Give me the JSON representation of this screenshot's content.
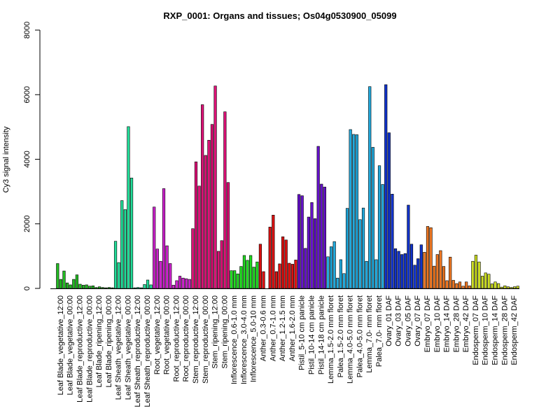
{
  "chart_data": {
    "type": "bar",
    "title": "RXP_0001: Organs and tissues; Os04g0530900_05099",
    "xlabel": "",
    "ylabel": "Cy3 signal intensity",
    "ylim": [
      0,
      8000
    ],
    "yticks": [
      0,
      2000,
      4000,
      6000,
      8000
    ],
    "grid": false,
    "groups": [
      {
        "label": "Leaf Blade_vegetative_12:00",
        "color": "#22bb22",
        "values": [
          770,
          280,
          540
        ]
      },
      {
        "label": "Leaf Blade_vegetative_00:00",
        "color": "#22bb22",
        "values": [
          170,
          110,
          280
        ]
      },
      {
        "label": "Leaf Blade_reproductive_12:00",
        "color": "#22bb22",
        "values": [
          420,
          130,
          100
        ]
      },
      {
        "label": "Leaf Blade_reproductive_00:00",
        "color": "#22bb22",
        "values": [
          110,
          70,
          80
        ]
      },
      {
        "label": "Leaf Blade_ripening_12:00",
        "color": "#22bb22",
        "values": [
          30,
          50,
          30
        ]
      },
      {
        "label": "Leaf Blade_ripening_00:00",
        "color": "#22bb22",
        "values": [
          20,
          30,
          20
        ]
      },
      {
        "label": "Leaf Sheath_vegetative_12:00",
        "color": "#22dd99",
        "values": [
          1460,
          800,
          2720
        ]
      },
      {
        "label": "Leaf Sheath_vegetative_00:00",
        "color": "#22dd99",
        "values": [
          2440,
          5010,
          3420
        ]
      },
      {
        "label": "Leaf Sheath_reproductive_12:00",
        "color": "#22dd99",
        "values": [
          20,
          30,
          20
        ]
      },
      {
        "label": "Leaf Sheath_reproductive_00:00",
        "color": "#22dd99",
        "values": [
          120,
          260,
          110
        ]
      },
      {
        "label": "Root_vegetative_12:00",
        "color": "#cc22cc",
        "values": [
          2520,
          1220,
          840
        ]
      },
      {
        "label": "Root_vegetative_00:00",
        "color": "#cc22cc",
        "values": [
          3090,
          1320,
          770
        ]
      },
      {
        "label": "Root_reproductive_12:00",
        "color": "#cc22cc",
        "values": [
          100,
          240,
          380
        ]
      },
      {
        "label": "Root_reproductive_00:00",
        "color": "#cc22cc",
        "values": [
          320,
          300,
          280
        ]
      },
      {
        "label": "Stem_reproductive_12:00",
        "color": "#dd1177",
        "values": [
          1850,
          3920,
          3170
        ]
      },
      {
        "label": "Stem_reproductive_00:00",
        "color": "#dd1177",
        "values": [
          5690,
          4120,
          4590
        ]
      },
      {
        "label": "Stem_ripening_12:00",
        "color": "#dd1177",
        "values": [
          5080,
          6270,
          1150
        ]
      },
      {
        "label": "Stem_ripening_00:00",
        "color": "#dd1177",
        "values": [
          1480,
          5470,
          3280
        ]
      },
      {
        "label": "Inflorescence_0.6-1.0 mm",
        "color": "#22dd22",
        "values": [
          550,
          550,
          450
        ]
      },
      {
        "label": "Inflorescence_3.0-4.0 mm",
        "color": "#22dd22",
        "values": [
          680,
          1020,
          870
        ]
      },
      {
        "label": "Inflorescence_5.0-10 mm",
        "color": "#22dd22",
        "values": [
          1020,
          660,
          820
        ]
      },
      {
        "label": "Anther_0.3-0.6 mm",
        "color": "#dd1111",
        "values": [
          1370,
          520,
          0
        ]
      },
      {
        "label": "Anther_0.7-1.0 mm",
        "color": "#dd1111",
        "values": [
          1900,
          2270,
          520
        ]
      },
      {
        "label": "Anther_1.2-1.5 mm",
        "color": "#dd1111",
        "values": [
          760,
          1600,
          1500
        ]
      },
      {
        "label": "Anther_1.6-2.0 mm",
        "color": "#dd1111",
        "values": [
          780,
          750,
          880
        ]
      },
      {
        "label": "Pistil_5-10 cm panicle",
        "color": "#6611cc",
        "values": [
          2910,
          2870,
          1240
        ]
      },
      {
        "label": "Pistil_10-14 cm panicle",
        "color": "#6611cc",
        "values": [
          2210,
          2660,
          2160
        ]
      },
      {
        "label": "Pistil_14-18 cm panicle",
        "color": "#6611cc",
        "values": [
          4400,
          3230,
          3140
        ]
      },
      {
        "label": "Lemma_1.5-2.0 mm floret",
        "color": "#22aadd",
        "values": [
          980,
          1290,
          1450
        ]
      },
      {
        "label": "Palea_1.5-2.0 mm floret",
        "color": "#22aadd",
        "values": [
          320,
          890,
          460
        ]
      },
      {
        "label": "Lemma_4.0-5.0 mm floret",
        "color": "#22aadd",
        "values": [
          2480,
          4920,
          4770
        ]
      },
      {
        "label": "Palea_4.0-5.0 mm floret",
        "color": "#22aadd",
        "values": [
          4760,
          2130,
          2490
        ]
      },
      {
        "label": "Lemma_7.0- mm floret",
        "color": "#22aadd",
        "values": [
          840,
          6250,
          4370
        ]
      },
      {
        "label": "Palea_7.0- mm floret",
        "color": "#22aadd",
        "values": [
          890,
          3800,
          3220
        ]
      },
      {
        "label": "Ovary_01 DAF",
        "color": "#1133cc",
        "values": [
          6310,
          4820,
          2920
        ]
      },
      {
        "label": "Ovary_03 DAF",
        "color": "#1133cc",
        "values": [
          1230,
          1150,
          1050
        ]
      },
      {
        "label": "Ovary_05 DAF",
        "color": "#1133cc",
        "values": [
          1080,
          2580,
          1370
        ]
      },
      {
        "label": "Ovary_07 DAF",
        "color": "#1133cc",
        "values": [
          720,
          920,
          1350
        ]
      },
      {
        "label": "Embryo_07 DAF",
        "color": "#ee7722",
        "values": [
          1120,
          1920,
          1880
        ]
      },
      {
        "label": "Embryo_10 DAF",
        "color": "#ee7722",
        "values": [
          690,
          1050,
          1170
        ]
      },
      {
        "label": "Embryo_14 DAF",
        "color": "#ee7722",
        "values": [
          680,
          240,
          970
        ]
      },
      {
        "label": "Embryo_28 DAF",
        "color": "#ee7722",
        "values": [
          250,
          150,
          200
        ]
      },
      {
        "label": "Embryo_42 DAF",
        "color": "#ee7722",
        "values": [
          70,
          200,
          80
        ]
      },
      {
        "label": "Endosperm_07 DAF",
        "color": "#ccdd22",
        "values": [
          840,
          1030,
          820
        ]
      },
      {
        "label": "Endosperm_10 DAF",
        "color": "#ccdd22",
        "values": [
          380,
          480,
          440
        ]
      },
      {
        "label": "Endosperm_14 DAF",
        "color": "#ccdd22",
        "values": [
          140,
          200,
          150
        ]
      },
      {
        "label": "Endosperm_28 DAF",
        "color": "#ccdd22",
        "values": [
          40,
          80,
          50
        ]
      },
      {
        "label": "Endosperm_42 DAF",
        "color": "#ccdd22",
        "values": [
          30,
          50,
          70
        ]
      }
    ]
  }
}
